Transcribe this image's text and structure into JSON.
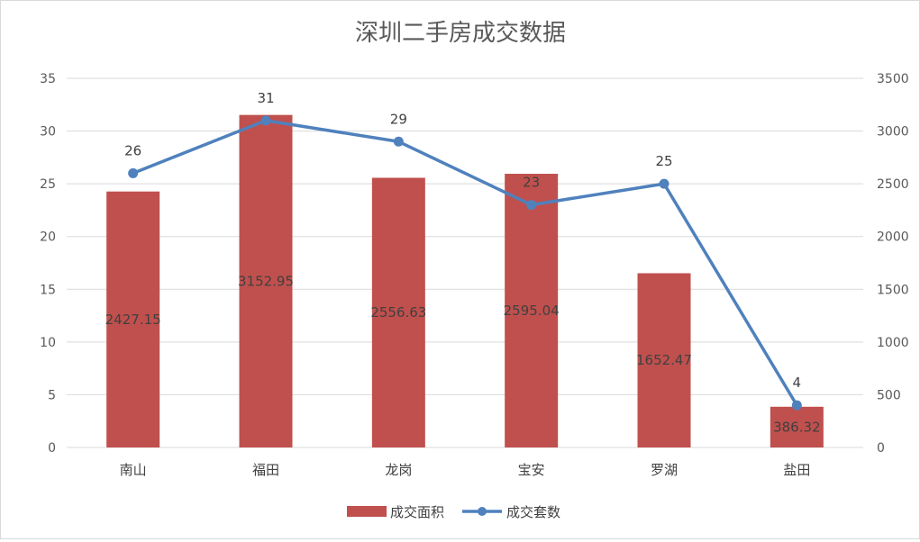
{
  "chart_data": {
    "type": "bar+line",
    "title": "深圳二手房成交数据",
    "categories": [
      "南山",
      "福田",
      "龙岗",
      "宝安",
      "罗湖",
      "盐田"
    ],
    "series": [
      {
        "name": "成交面积",
        "type": "bar",
        "axis": "left",
        "color": "#c0504d",
        "values": [
          24.27,
          31.53,
          25.57,
          25.95,
          16.52,
          3.86
        ],
        "data_labels": [
          "2427.15",
          "3152.95",
          "2556.63",
          "2595.04",
          "1652.47",
          "386.32"
        ]
      },
      {
        "name": "成交套数",
        "type": "line",
        "axis": "right",
        "color": "#4f81bd",
        "values": [
          2600,
          3100,
          2900,
          2300,
          2500,
          400
        ],
        "data_labels": [
          "26",
          "31",
          "29",
          "23",
          "25",
          "4"
        ]
      }
    ],
    "y_left": {
      "min": 0,
      "max": 35,
      "ticks": [
        "0",
        "5",
        "10",
        "15",
        "20",
        "25",
        "30",
        "35"
      ]
    },
    "y_right": {
      "min": 0,
      "max": 3500,
      "ticks": [
        "0",
        "500",
        "1000",
        "1500",
        "2000",
        "2500",
        "3000",
        "3500"
      ]
    },
    "grid": true,
    "legend": "bottom"
  }
}
